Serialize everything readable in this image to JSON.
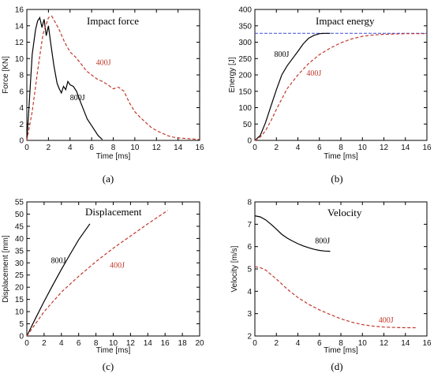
{
  "chart_data": [
    {
      "panel": "(a)",
      "type": "line",
      "title": "Impact force",
      "xlabel": "Time [ms]",
      "ylabel": "Force [KN]",
      "xlim": [
        0,
        16
      ],
      "ylim": [
        0,
        16
      ],
      "xticks": [
        0,
        2,
        4,
        6,
        8,
        10,
        12,
        14,
        16
      ],
      "yticks": [
        0,
        2,
        4,
        6,
        8,
        10,
        12,
        14,
        16
      ],
      "series": [
        {
          "name": "800J",
          "color": "#000000",
          "dash": "solid",
          "label_pos": [
            4.0,
            4.9
          ],
          "x": [
            0,
            0.2,
            0.5,
            0.8,
            1.0,
            1.2,
            1.4,
            1.6,
            1.8,
            2.0,
            2.2,
            2.5,
            2.8,
            3.0,
            3.2,
            3.4,
            3.6,
            3.8,
            4.0,
            4.3,
            4.6,
            5.0,
            5.3,
            5.6,
            6.0,
            6.3,
            6.6,
            7.0
          ],
          "y": [
            0,
            4.0,
            10.5,
            13.5,
            14.6,
            15.0,
            13.8,
            14.8,
            12.8,
            14.0,
            12.0,
            9.2,
            7.0,
            6.3,
            5.8,
            6.6,
            6.2,
            7.2,
            6.8,
            6.6,
            6.0,
            4.6,
            3.6,
            2.6,
            1.8,
            1.2,
            0.6,
            0.1
          ]
        },
        {
          "name": "400J",
          "color": "#c0392b",
          "dash": "dashed",
          "label_pos": [
            6.4,
            9.2
          ],
          "x": [
            0,
            0.5,
            1.0,
            1.5,
            2.0,
            2.3,
            2.6,
            3.0,
            3.5,
            4.0,
            4.5,
            5.0,
            5.5,
            6.0,
            6.5,
            7.0,
            7.5,
            8.0,
            8.5,
            9.0,
            9.5,
            10.0,
            10.5,
            11.0,
            11.5,
            12.0,
            12.5,
            13.0,
            13.5,
            14.0,
            14.5,
            15.0,
            15.5,
            16.0
          ],
          "y": [
            0,
            3.5,
            8.5,
            13.0,
            15.0,
            15.2,
            14.5,
            13.5,
            12.0,
            10.8,
            10.2,
            9.4,
            8.5,
            8.0,
            7.5,
            7.2,
            6.8,
            6.3,
            6.5,
            6.0,
            4.6,
            3.5,
            2.8,
            2.2,
            1.6,
            1.2,
            0.9,
            0.6,
            0.4,
            0.3,
            0.25,
            0.2,
            0.15,
            0.1
          ]
        }
      ]
    },
    {
      "panel": "(b)",
      "type": "line",
      "title": "Impact energy",
      "xlabel": "Time [ms]",
      "ylabel": "Energy [J]",
      "xlim": [
        0,
        16
      ],
      "ylim": [
        0,
        400
      ],
      "xticks": [
        0,
        2,
        4,
        6,
        8,
        10,
        12,
        14,
        16
      ],
      "yticks": [
        0,
        50,
        100,
        150,
        200,
        250,
        300,
        350,
        400
      ],
      "reference_line": {
        "y": 327,
        "color": "#3b4fd8"
      },
      "series": [
        {
          "name": "800J",
          "color": "#000000",
          "dash": "solid",
          "label_pos": [
            1.8,
            255
          ],
          "x": [
            0,
            0.5,
            1.0,
            1.5,
            2.0,
            2.5,
            3.0,
            3.5,
            4.0,
            4.5,
            5.0,
            5.5,
            6.0,
            6.5,
            7.0
          ],
          "y": [
            0,
            15,
            55,
            105,
            155,
            200,
            228,
            250,
            272,
            295,
            312,
            321,
            326,
            327,
            327
          ]
        },
        {
          "name": "400J",
          "color": "#c0392b",
          "dash": "dashed",
          "label_pos": [
            4.8,
            198
          ],
          "x": [
            0,
            0.5,
            1.0,
            1.5,
            2.0,
            3.0,
            4.0,
            5.0,
            6.0,
            7.0,
            8.0,
            9.0,
            10.0,
            11.0,
            12.0,
            13.0,
            14.0,
            15.0,
            16.0
          ],
          "y": [
            0,
            10,
            30,
            60,
            95,
            158,
            200,
            235,
            262,
            282,
            298,
            310,
            318,
            322,
            324,
            325,
            326,
            326,
            326
          ]
        }
      ]
    },
    {
      "panel": "(c)",
      "type": "line",
      "title": "Displacement",
      "xlabel": "Time [ms]",
      "ylabel": "Displacement [mm]",
      "xlim": [
        0,
        20
      ],
      "ylim": [
        0,
        55
      ],
      "xticks": [
        0,
        2,
        4,
        6,
        8,
        10,
        12,
        14,
        16,
        18,
        20
      ],
      "yticks": [
        0,
        5,
        10,
        15,
        20,
        25,
        30,
        35,
        40,
        45,
        50,
        55
      ],
      "series": [
        {
          "name": "800J",
          "color": "#000000",
          "dash": "solid",
          "label_pos": [
            2.8,
            30
          ],
          "x": [
            0,
            1,
            2,
            3,
            4,
            5,
            6,
            7.3
          ],
          "y": [
            0,
            7.2,
            14.2,
            20.8,
            27.3,
            33.5,
            39.5,
            46.0
          ]
        },
        {
          "name": "400J",
          "color": "#c0392b",
          "dash": "dashed",
          "label_pos": [
            9.6,
            28
          ],
          "x": [
            0,
            1,
            2,
            4,
            6,
            8,
            10,
            12,
            14,
            16.3
          ],
          "y": [
            0,
            5.0,
            10.0,
            18.0,
            24.5,
            30.5,
            36.0,
            41.0,
            46.0,
            51.5
          ]
        }
      ]
    },
    {
      "panel": "(d)",
      "type": "line",
      "title": "Velocity",
      "xlabel": "Time [ms]",
      "ylabel": "Velocity [m/s]",
      "xlim": [
        0,
        16
      ],
      "ylim": [
        2,
        8
      ],
      "xticks": [
        0,
        2,
        4,
        6,
        8,
        10,
        12,
        14,
        16
      ],
      "yticks": [
        2,
        3,
        4,
        5,
        6,
        7,
        8
      ],
      "series": [
        {
          "name": "800J",
          "color": "#000000",
          "dash": "solid",
          "label_pos": [
            5.6,
            6.15
          ],
          "x": [
            0,
            0.5,
            1.0,
            1.5,
            2.0,
            2.5,
            3.0,
            3.5,
            4.0,
            4.5,
            5.0,
            5.5,
            6.0,
            6.5,
            7.0
          ],
          "y": [
            7.38,
            7.33,
            7.2,
            7.0,
            6.78,
            6.55,
            6.38,
            6.25,
            6.13,
            6.03,
            5.95,
            5.88,
            5.83,
            5.8,
            5.79
          ]
        },
        {
          "name": "400J",
          "color": "#c0392b",
          "dash": "dashed",
          "label_pos": [
            11.5,
            2.6
          ],
          "x": [
            0,
            0.5,
            1.0,
            2.0,
            3.0,
            4.0,
            5.0,
            6.0,
            7.0,
            8.0,
            9.0,
            10.0,
            11.0,
            12.0,
            13.0,
            14.0,
            15.0
          ],
          "y": [
            5.1,
            5.06,
            4.95,
            4.55,
            4.1,
            3.72,
            3.42,
            3.17,
            2.96,
            2.77,
            2.62,
            2.51,
            2.44,
            2.4,
            2.38,
            2.37,
            2.37
          ]
        }
      ]
    }
  ]
}
